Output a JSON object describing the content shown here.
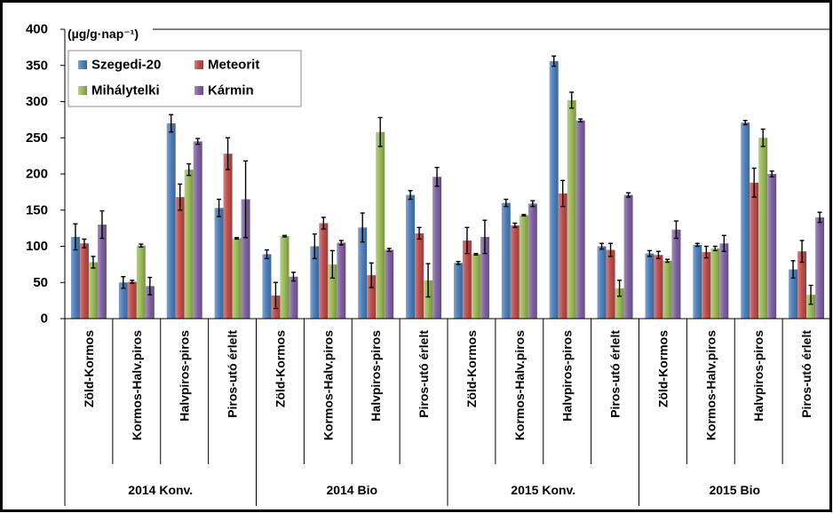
{
  "chart_data": {
    "type": "bar",
    "ylabel": "(µg/g·nap⁻¹)",
    "ylim": [
      0,
      400
    ],
    "yticks": [
      0,
      50,
      100,
      150,
      200,
      250,
      300,
      350,
      400
    ],
    "grid": false,
    "legend": "top-left",
    "groups": [
      {
        "label": "2014 Konv.",
        "categories": [
          "Zöld-Kormos",
          "Kormos-Halv.piros",
          "Halvpiros-piros",
          "Piros-utó érlelt"
        ]
      },
      {
        "label": "2014 Bio",
        "categories": [
          "Zöld-Kormos",
          "Kormos-Halv.piros",
          "Halvpiros-piros",
          "Piros-utó érlelt"
        ]
      },
      {
        "label": "2015 Konv.",
        "categories": [
          "Zöld-Kormos",
          "Kormos-Halv.piros",
          "Halvpiros-piros",
          "Piros-utó érlelt"
        ]
      },
      {
        "label": "2015 Bio",
        "categories": [
          "Zöld-Kormos",
          "Kormos-Halv.piros",
          "Halvpiros-piros",
          "Piros-utó érlelt"
        ]
      }
    ],
    "series": [
      {
        "name": "Szegedi-20",
        "color": "#4F81BD",
        "values": [
          113,
          50,
          270,
          153,
          89,
          100,
          126,
          171,
          77,
          160,
          356,
          100,
          90,
          102,
          271,
          68
        ],
        "errors": [
          18,
          8,
          12,
          12,
          6,
          17,
          20,
          6,
          2,
          5,
          7,
          4,
          4,
          2,
          3,
          12
        ]
      },
      {
        "name": "Meteorit",
        "color": "#C0504D",
        "values": [
          104,
          51,
          168,
          228,
          32,
          132,
          60,
          118,
          108,
          129,
          173,
          95,
          88,
          92,
          188,
          93
        ],
        "errors": [
          6,
          2,
          18,
          22,
          18,
          8,
          17,
          8,
          18,
          3,
          18,
          9,
          5,
          8,
          20,
          15
        ]
      },
      {
        "name": "Mihálytelki",
        "color": "#9BBB59",
        "values": [
          78,
          101,
          206,
          111,
          114,
          75,
          258,
          53,
          89,
          143,
          302,
          42,
          80,
          97,
          250,
          33
        ],
        "errors": [
          8,
          2,
          8,
          1,
          1,
          19,
          20,
          23,
          1,
          1,
          11,
          11,
          2,
          3,
          12,
          13
        ]
      },
      {
        "name": "Kármin",
        "color": "#8064A2",
        "values": [
          130,
          45,
          245,
          165,
          58,
          105,
          95,
          196,
          113,
          159,
          274,
          171,
          123,
          104,
          200,
          140
        ],
        "errors": [
          19,
          12,
          4,
          53,
          6,
          3,
          2,
          13,
          23,
          4,
          2,
          3,
          12,
          11,
          4,
          7
        ]
      }
    ]
  }
}
